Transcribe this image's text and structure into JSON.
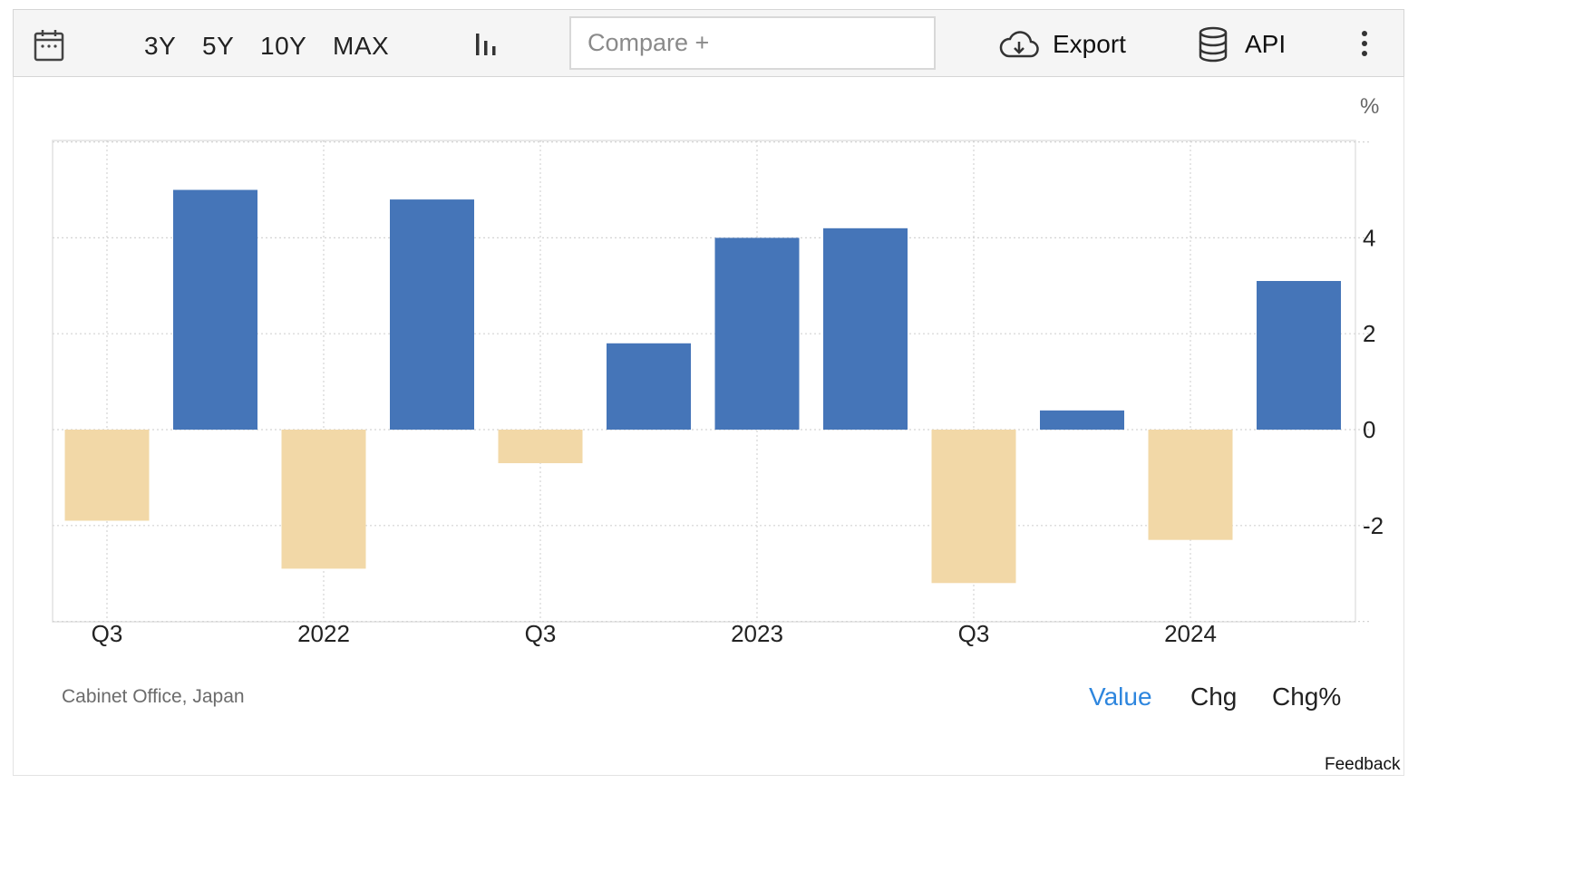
{
  "toolbar": {
    "calendar_icon": "calendar-icon",
    "ranges": [
      "3Y",
      "5Y",
      "10Y",
      "MAX"
    ],
    "chart_type_icon": "bar-chart-icon",
    "compare_placeholder": "Compare +",
    "export_label": "Export",
    "export_icon": "cloud-download-icon",
    "api_label": "API",
    "api_icon": "database-icon",
    "more_icon": "vertical-ellipsis-icon"
  },
  "footer": {
    "source": "Cabinet Office, Japan",
    "modes": {
      "value": "Value",
      "chg": "Chg",
      "chg_pct": "Chg%"
    },
    "feedback": "Feedback"
  },
  "colors": {
    "positive": "#4575b8",
    "negative": "#f2d8a7",
    "active_mode": "#2e86de"
  },
  "chart_data": {
    "type": "bar",
    "unit": "%",
    "categories": [
      "Q3 2021",
      "Q4 2021",
      "Q1 2022",
      "Q2 2022",
      "Q3 2022",
      "Q4 2022",
      "Q1 2023",
      "Q2 2023",
      "Q3 2023",
      "Q4 2023",
      "Q1 2024",
      "Q2 2024"
    ],
    "values": [
      -1.9,
      5.0,
      -2.9,
      4.8,
      -0.7,
      1.8,
      4.0,
      4.2,
      -3.2,
      0.4,
      -2.3,
      3.1
    ],
    "x_tick_labels": [
      {
        "label": "Q3",
        "category_index": 0
      },
      {
        "label": "2022",
        "category_index": 2
      },
      {
        "label": "Q3",
        "category_index": 4
      },
      {
        "label": "2023",
        "category_index": 6
      },
      {
        "label": "Q3",
        "category_index": 8
      },
      {
        "label": "2024",
        "category_index": 10
      }
    ],
    "y_ticks": [
      4,
      2,
      0,
      -2
    ],
    "y_tick_labels": [
      "4",
      "2",
      "0",
      "-2"
    ],
    "ylim": [
      -4,
      6
    ],
    "grid": true,
    "y_axis_side": "right"
  }
}
